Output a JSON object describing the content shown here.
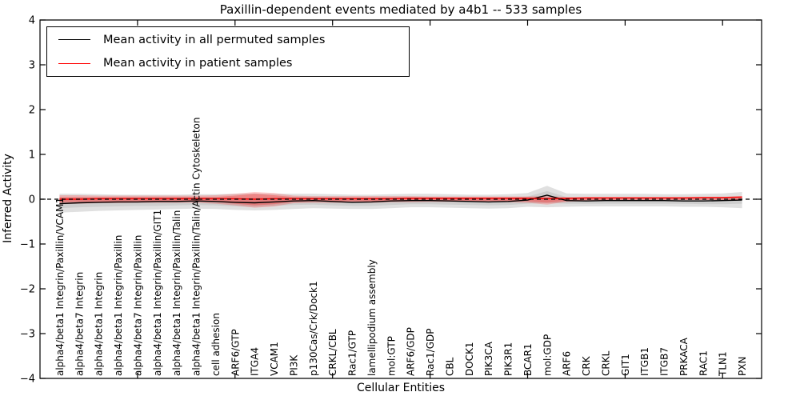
{
  "title": "Paxillin-dependent events mediated by a4b1 -- 533 samples",
  "legend": {
    "items": [
      {
        "label": "Mean activity in all permuted samples",
        "color": "#000000"
      },
      {
        "label": "Mean activity in patient samples",
        "color": "#ff0000"
      }
    ]
  },
  "chart_data": {
    "type": "line",
    "title": "Paxillin-dependent events mediated by a4b1 -- 533 samples",
    "xlabel": "Cellular Entities",
    "ylabel": "Inferred Activity",
    "ylim": [
      -4,
      4
    ],
    "yticks": [
      -4,
      -3,
      -2,
      -1,
      0,
      1,
      2,
      3,
      4
    ],
    "xtick_unit_positions": [
      5,
      10,
      15,
      20,
      25,
      30,
      35
    ],
    "grid": false,
    "legend_position": "upper left",
    "categories": [
      "alpha4/beta1 Integrin/Paxillin/VCAM1",
      "alpha4/beta7 Integrin",
      "alpha4/beta1 Integrin",
      "alpha4/beta1 Integrin/Paxillin",
      "alpha4/beta7 Integrin/Paxillin",
      "alpha4/beta1 Integrin/Paxillin/GIT1",
      "alpha4/beta1 Integrin/Paxillin/Talin",
      "alpha4/beta1 Integrin/Paxillin/Talin/Actin Cytoskeleton",
      "cell adhesion",
      "ARF6/GTP",
      "ITGA4",
      "VCAM1",
      "PI3K",
      "p130Cas/Crk/Dock1",
      "CRKL/CBL",
      "Rac1/GTP",
      "lamellipodium assembly",
      "mol:GTP",
      "ARF6/GDP",
      "Rac1/GDP",
      "CBL",
      "DOCK1",
      "PIK3CA",
      "PIK3R1",
      "BCAR1",
      "mol:GDP",
      "ARF6",
      "CRK",
      "CRKL",
      "GIT1",
      "ITGB1",
      "ITGB7",
      "PRKACA",
      "RAC1",
      "TLN1",
      "PXN"
    ],
    "series": [
      {
        "name": "Mean activity in all permuted samples",
        "color": "#000000",
        "values": [
          -0.1,
          -0.08,
          -0.07,
          -0.06,
          -0.06,
          -0.05,
          -0.05,
          -0.04,
          -0.05,
          -0.07,
          -0.08,
          -0.06,
          -0.04,
          -0.03,
          -0.05,
          -0.07,
          -0.06,
          -0.04,
          -0.03,
          -0.03,
          -0.04,
          -0.05,
          -0.06,
          -0.05,
          -0.02,
          0.09,
          -0.03,
          -0.04,
          -0.03,
          -0.03,
          -0.03,
          -0.03,
          -0.04,
          -0.04,
          -0.03,
          -0.02
        ]
      },
      {
        "name": "Mean activity in patient samples",
        "color": "#ff0000",
        "values": [
          0.0,
          0.0,
          0.01,
          0.01,
          0.01,
          0.01,
          0.01,
          0.01,
          0.01,
          0.01,
          0.0,
          0.01,
          0.01,
          0.01,
          0.01,
          0.01,
          0.01,
          0.01,
          0.02,
          0.02,
          0.02,
          0.02,
          0.02,
          0.02,
          0.02,
          0.01,
          0.02,
          0.03,
          0.03,
          0.03,
          0.03,
          0.03,
          0.03,
          0.04,
          0.04,
          0.05
        ]
      }
    ],
    "bands": [
      {
        "name": "permuted-outer",
        "color": "#000000",
        "opacity": 0.12,
        "upper": [
          0.12,
          0.12,
          0.11,
          0.1,
          0.1,
          0.1,
          0.1,
          0.11,
          0.11,
          0.12,
          0.13,
          0.12,
          0.12,
          0.12,
          0.11,
          0.1,
          0.1,
          0.11,
          0.12,
          0.12,
          0.11,
          0.1,
          0.1,
          0.11,
          0.14,
          0.3,
          0.13,
          0.12,
          0.12,
          0.12,
          0.12,
          0.11,
          0.11,
          0.12,
          0.13,
          0.16
        ],
        "lower": [
          -0.3,
          -0.28,
          -0.26,
          -0.25,
          -0.24,
          -0.23,
          -0.22,
          -0.21,
          -0.22,
          -0.24,
          -0.25,
          -0.24,
          -0.22,
          -0.2,
          -0.21,
          -0.22,
          -0.22,
          -0.2,
          -0.18,
          -0.18,
          -0.19,
          -0.2,
          -0.21,
          -0.2,
          -0.17,
          -0.18,
          -0.17,
          -0.16,
          -0.16,
          -0.16,
          -0.16,
          -0.16,
          -0.17,
          -0.17,
          -0.18,
          -0.2
        ]
      },
      {
        "name": "permuted-inner",
        "color": "#000000",
        "opacity": 0.08,
        "upper": [
          0.02,
          0.03,
          0.03,
          0.04,
          0.04,
          0.04,
          0.04,
          0.05,
          0.04,
          0.03,
          0.03,
          0.04,
          0.05,
          0.05,
          0.04,
          0.03,
          0.03,
          0.04,
          0.05,
          0.05,
          0.04,
          0.04,
          0.03,
          0.04,
          0.06,
          0.18,
          0.05,
          0.04,
          0.04,
          0.04,
          0.04,
          0.04,
          0.04,
          0.04,
          0.05,
          0.06
        ],
        "lower": [
          -0.2,
          -0.18,
          -0.17,
          -0.16,
          -0.15,
          -0.15,
          -0.14,
          -0.13,
          -0.14,
          -0.16,
          -0.17,
          -0.15,
          -0.13,
          -0.12,
          -0.14,
          -0.15,
          -0.15,
          -0.13,
          -0.11,
          -0.11,
          -0.12,
          -0.13,
          -0.14,
          -0.13,
          -0.1,
          -0.08,
          -0.1,
          -0.1,
          -0.1,
          -0.1,
          -0.1,
          -0.1,
          -0.1,
          -0.11,
          -0.11,
          -0.1
        ]
      },
      {
        "name": "patient-outer",
        "color": "#ff0000",
        "opacity": 0.2,
        "upper": [
          0.09,
          0.09,
          0.08,
          0.08,
          0.08,
          0.08,
          0.08,
          0.08,
          0.09,
          0.12,
          0.16,
          0.14,
          0.08,
          0.07,
          0.07,
          0.07,
          0.07,
          0.07,
          0.07,
          0.06,
          0.06,
          0.06,
          0.06,
          0.06,
          0.06,
          0.07,
          0.05,
          0.04,
          0.04,
          0.04,
          0.04,
          0.04,
          0.04,
          0.04,
          0.04,
          0.05
        ],
        "lower": [
          -0.11,
          -0.1,
          -0.09,
          -0.09,
          -0.08,
          -0.08,
          -0.08,
          -0.08,
          -0.1,
          -0.14,
          -0.19,
          -0.16,
          -0.09,
          -0.08,
          -0.08,
          -0.08,
          -0.08,
          -0.07,
          -0.07,
          -0.06,
          -0.06,
          -0.06,
          -0.06,
          -0.07,
          -0.08,
          -0.12,
          -0.06,
          -0.04,
          -0.03,
          -0.03,
          -0.02,
          -0.02,
          -0.02,
          -0.02,
          -0.02,
          -0.02
        ]
      },
      {
        "name": "patient-inner",
        "color": "#ff0000",
        "opacity": 0.25,
        "upper": [
          0.05,
          0.05,
          0.05,
          0.05,
          0.05,
          0.05,
          0.05,
          0.05,
          0.05,
          0.08,
          0.12,
          0.09,
          0.05,
          0.04,
          0.04,
          0.04,
          0.04,
          0.04,
          0.04,
          0.04,
          0.04,
          0.04,
          0.04,
          0.04,
          0.04,
          0.04,
          0.03,
          0.03,
          0.02,
          0.02,
          0.02,
          0.02,
          0.02,
          0.02,
          0.02,
          0.03
        ],
        "lower": [
          -0.07,
          -0.06,
          -0.06,
          -0.05,
          -0.05,
          -0.05,
          -0.05,
          -0.05,
          -0.06,
          -0.1,
          -0.14,
          -0.11,
          -0.06,
          -0.05,
          -0.05,
          -0.05,
          -0.05,
          -0.04,
          -0.04,
          -0.04,
          -0.04,
          -0.04,
          -0.04,
          -0.04,
          -0.05,
          -0.08,
          -0.04,
          -0.02,
          -0.02,
          -0.01,
          -0.01,
          -0.01,
          -0.01,
          -0.01,
          -0.01,
          -0.01
        ]
      }
    ],
    "zero_line": {
      "y": 0,
      "color": "#000000",
      "style": "dashed"
    }
  }
}
